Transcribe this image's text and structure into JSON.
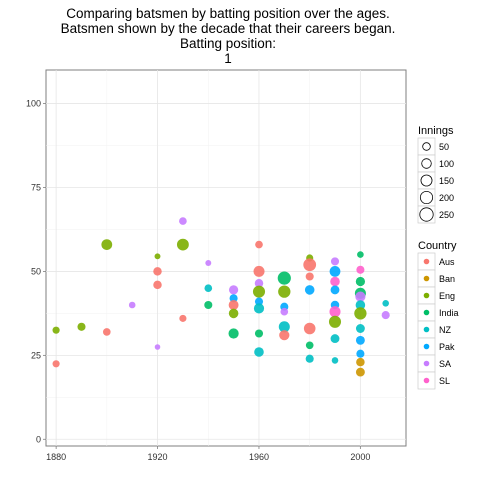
{
  "chart_data": {
    "type": "scatter",
    "title": "Comparing batsmen by batting position over the ages.",
    "subtitle": "Batsmen shown by the decade that their careers began.",
    "facet_label": "Batting position:",
    "facet_value": "1",
    "xlabel": "",
    "ylabel": "",
    "xlim": [
      1876,
      2018
    ],
    "ylim": [
      -2,
      110
    ],
    "x_ticks": [
      1880,
      1920,
      1960,
      2000
    ],
    "y_ticks": [
      0,
      25,
      50,
      75,
      100
    ],
    "grid": true,
    "legend_placement": "right",
    "size_legend": {
      "title": "Innings",
      "entries": [
        "50",
        "100",
        "150",
        "200",
        "250"
      ],
      "values": [
        50,
        100,
        150,
        200,
        250
      ]
    },
    "color_legend": {
      "title": "Country",
      "entries": [
        "Aus",
        "Ban",
        "Eng",
        "India",
        "NZ",
        "Pak",
        "SA",
        "SL"
      ],
      "colors": [
        "#F8766D",
        "#CD9600",
        "#7CAE00",
        "#00BE67",
        "#00BFC4",
        "#00A9FF",
        "#C77CFF",
        "#FF61CC"
      ]
    },
    "points": [
      {
        "x": 1880,
        "y": 22.5,
        "country": "Aus",
        "innings": 40
      },
      {
        "x": 1880,
        "y": 32.5,
        "country": "Eng",
        "innings": 40
      },
      {
        "x": 1890,
        "y": 33.5,
        "country": "Eng",
        "innings": 60
      },
      {
        "x": 1900,
        "y": 58,
        "country": "Eng",
        "innings": 140
      },
      {
        "x": 1900,
        "y": 32,
        "country": "Aus",
        "innings": 50
      },
      {
        "x": 1910,
        "y": 40,
        "country": "SA",
        "innings": 30
      },
      {
        "x": 1920,
        "y": 54.5,
        "country": "Eng",
        "innings": 20
      },
      {
        "x": 1920,
        "y": 50,
        "country": "Aus",
        "innings": 70
      },
      {
        "x": 1920,
        "y": 46,
        "country": "Aus",
        "innings": 70
      },
      {
        "x": 1920,
        "y": 27.5,
        "country": "SA",
        "innings": 15
      },
      {
        "x": 1930,
        "y": 65,
        "country": "SA",
        "innings": 50
      },
      {
        "x": 1930,
        "y": 58,
        "country": "Eng",
        "innings": 180
      },
      {
        "x": 1930,
        "y": 36,
        "country": "Aus",
        "innings": 40
      },
      {
        "x": 1940,
        "y": 52.5,
        "country": "SA",
        "innings": 20
      },
      {
        "x": 1940,
        "y": 45,
        "country": "NZ",
        "innings": 50
      },
      {
        "x": 1940,
        "y": 40,
        "country": "India",
        "innings": 60
      },
      {
        "x": 1950,
        "y": 44.5,
        "country": "SA",
        "innings": 90
      },
      {
        "x": 1950,
        "y": 42,
        "country": "Pak",
        "innings": 60
      },
      {
        "x": 1950,
        "y": 40,
        "country": "Aus",
        "innings": 110
      },
      {
        "x": 1950,
        "y": 37.5,
        "country": "Eng",
        "innings": 100
      },
      {
        "x": 1950,
        "y": 31.5,
        "country": "India",
        "innings": 120
      },
      {
        "x": 1960,
        "y": 58,
        "country": "Aus",
        "innings": 50
      },
      {
        "x": 1960,
        "y": 50,
        "country": "Aus",
        "innings": 150
      },
      {
        "x": 1960,
        "y": 46.5,
        "country": "SA",
        "innings": 70
      },
      {
        "x": 1960,
        "y": 44,
        "country": "Eng",
        "innings": 190
      },
      {
        "x": 1960,
        "y": 41,
        "country": "Pak",
        "innings": 60
      },
      {
        "x": 1960,
        "y": 39,
        "country": "NZ",
        "innings": 120
      },
      {
        "x": 1960,
        "y": 31.5,
        "country": "India",
        "innings": 60
      },
      {
        "x": 1960,
        "y": 26,
        "country": "NZ",
        "innings": 100
      },
      {
        "x": 1970,
        "y": 48,
        "country": "India",
        "innings": 240
      },
      {
        "x": 1970,
        "y": 44,
        "country": "Eng",
        "innings": 200
      },
      {
        "x": 1970,
        "y": 39.5,
        "country": "Pak",
        "innings": 60
      },
      {
        "x": 1970,
        "y": 38,
        "country": "SA",
        "innings": 50
      },
      {
        "x": 1970,
        "y": 33.5,
        "country": "NZ",
        "innings": 150
      },
      {
        "x": 1970,
        "y": 31,
        "country": "Aus",
        "innings": 120
      },
      {
        "x": 1980,
        "y": 54,
        "country": "Eng",
        "innings": 40
      },
      {
        "x": 1980,
        "y": 52,
        "country": "Aus",
        "innings": 220
      },
      {
        "x": 1980,
        "y": 48.5,
        "country": "Aus",
        "innings": 60
      },
      {
        "x": 1980,
        "y": 44.5,
        "country": "Pak",
        "innings": 100
      },
      {
        "x": 1980,
        "y": 33,
        "country": "Aus",
        "innings": 170
      },
      {
        "x": 1980,
        "y": 28,
        "country": "India",
        "innings": 50
      },
      {
        "x": 1980,
        "y": 24,
        "country": "NZ",
        "innings": 60
      },
      {
        "x": 1990,
        "y": 53,
        "country": "SA",
        "innings": 60
      },
      {
        "x": 1990,
        "y": 50,
        "country": "Pak",
        "innings": 140
      },
      {
        "x": 1990,
        "y": 47,
        "country": "SL",
        "innings": 100
      },
      {
        "x": 1990,
        "y": 44.5,
        "country": "Pak",
        "innings": 80
      },
      {
        "x": 1990,
        "y": 40,
        "country": "Pak",
        "innings": 70
      },
      {
        "x": 1990,
        "y": 38,
        "country": "SL",
        "innings": 150
      },
      {
        "x": 1990,
        "y": 35,
        "country": "Eng",
        "innings": 190
      },
      {
        "x": 1990,
        "y": 30,
        "country": "NZ",
        "innings": 80
      },
      {
        "x": 1990,
        "y": 23.5,
        "country": "NZ",
        "innings": 30
      },
      {
        "x": 2000,
        "y": 55,
        "country": "India",
        "innings": 30
      },
      {
        "x": 2000,
        "y": 50.5,
        "country": "SL",
        "innings": 60
      },
      {
        "x": 2000,
        "y": 47,
        "country": "India",
        "innings": 90
      },
      {
        "x": 2000,
        "y": 43.5,
        "country": "India",
        "innings": 150
      },
      {
        "x": 2000,
        "y": 42.5,
        "country": "SA",
        "innings": 120
      },
      {
        "x": 2000,
        "y": 40,
        "country": "NZ",
        "innings": 100
      },
      {
        "x": 2000,
        "y": 37.5,
        "country": "Eng",
        "innings": 200
      },
      {
        "x": 2000,
        "y": 33,
        "country": "NZ",
        "innings": 80
      },
      {
        "x": 2000,
        "y": 29.5,
        "country": "Pak",
        "innings": 80
      },
      {
        "x": 2000,
        "y": 25.5,
        "country": "Pak",
        "innings": 60
      },
      {
        "x": 2000,
        "y": 23,
        "country": "Ban",
        "innings": 70
      },
      {
        "x": 2000,
        "y": 20,
        "country": "Ban",
        "innings": 80
      },
      {
        "x": 2010,
        "y": 40.5,
        "country": "NZ",
        "innings": 30
      },
      {
        "x": 2010,
        "y": 37,
        "country": "SA",
        "innings": 60
      }
    ]
  }
}
